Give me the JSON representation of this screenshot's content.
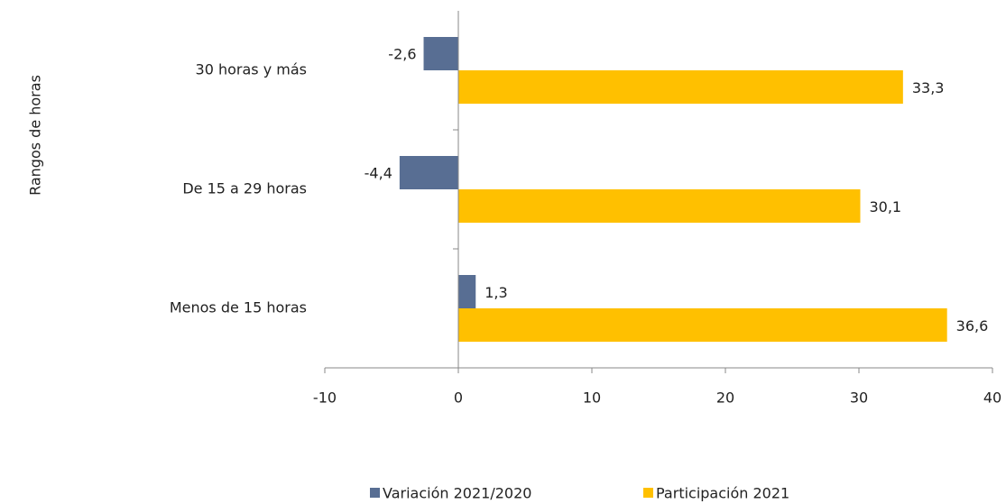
{
  "chart_data": {
    "type": "hbar",
    "y_axis_label": "Rangos de horas",
    "categories": [
      "30 horas y más",
      "De 15 a 29 horas",
      "Menos de 15 horas"
    ],
    "series": [
      {
        "name": "Variación 2021/2020",
        "color": "#586e93",
        "values": [
          -2.6,
          -4.4,
          1.3
        ],
        "value_labels": [
          "-2,6",
          "-4,4",
          "1,3"
        ]
      },
      {
        "name": "Participación 2021",
        "color": "#ffc000",
        "values": [
          33.3,
          30.1,
          36.6
        ],
        "value_labels": [
          "33,3",
          "30,1",
          "36,6"
        ]
      }
    ],
    "xlim": [
      -10,
      40
    ],
    "xticks": [
      -10,
      0,
      10,
      20,
      30,
      40
    ],
    "legend": "bottom"
  }
}
